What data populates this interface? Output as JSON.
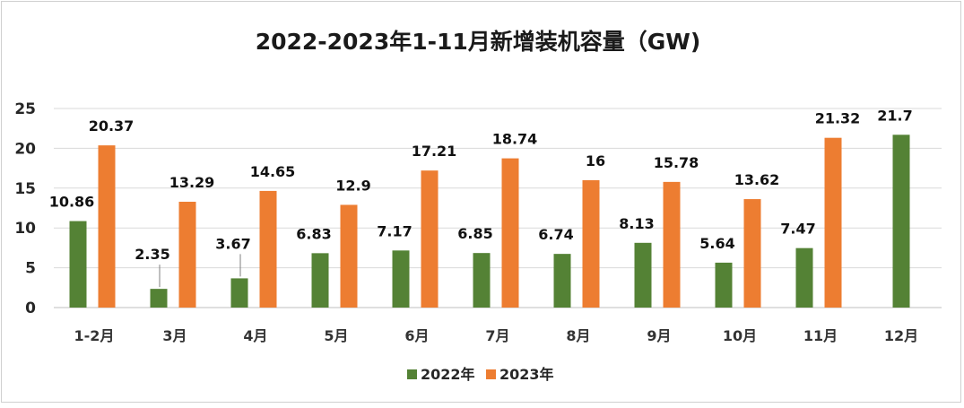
{
  "chart_data": {
    "type": "bar",
    "title": "2022-2023年1-11月新增装机容量（GW)",
    "xlabel": "",
    "ylabel": "",
    "ylim": [
      0,
      25
    ],
    "yticks": [
      0,
      5,
      10,
      15,
      20,
      25
    ],
    "grid": true,
    "legend_position": "bottom",
    "categories": [
      "1-2月",
      "3月",
      "4月",
      "5月",
      "6月",
      "7月",
      "8月",
      "9月",
      "10月",
      "11月",
      "12月"
    ],
    "series": [
      {
        "name": "2022年",
        "color": "#548235",
        "values": [
          10.86,
          2.35,
          3.67,
          6.83,
          7.17,
          6.85,
          6.74,
          8.13,
          5.64,
          7.47,
          21.7
        ]
      },
      {
        "name": "2023年",
        "color": "#ED7D31",
        "values": [
          20.37,
          13.29,
          14.65,
          12.9,
          17.21,
          18.74,
          16,
          15.78,
          13.62,
          21.32,
          null
        ]
      }
    ]
  }
}
